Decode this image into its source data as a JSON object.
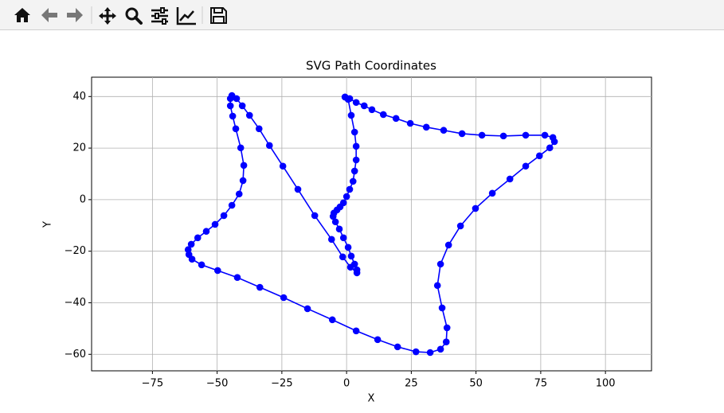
{
  "chart_data": {
    "type": "line",
    "title": "SVG Path Coordinates",
    "x_label": "X",
    "y_label": "Y",
    "x": [
      -0.6,
      1.2,
      3.7,
      6.8,
      9.8,
      14.2,
      19.1,
      24.6,
      30.8,
      37.5,
      44.6,
      52.3,
      60.6,
      69.2,
      76.6,
      79.7,
      80.3,
      78.5,
      74.5,
      69.2,
      63.1,
      56.3,
      49.8,
      44.0,
      39.4,
      36.3,
      35.1,
      36.9,
      38.8,
      38.5,
      36.3,
      32.3,
      26.8,
      19.7,
      12.0,
      3.7,
      -5.5,
      -15.1,
      -24.3,
      -33.5,
      -42.2,
      -49.8,
      -56.0,
      -59.7,
      -60.9,
      -61.2,
      -60.0,
      -57.5,
      -54.2,
      -50.8,
      -47.4,
      -44.3,
      -41.5,
      -40.0,
      -39.7,
      -40.9,
      -42.8,
      -44.0,
      -44.9,
      -44.9,
      -44.3,
      -42.5,
      -40.3,
      -37.5,
      -33.8,
      -29.8,
      -24.6,
      -18.8,
      -12.3,
      -5.8,
      -1.5,
      1.5,
      4.0,
      4.0,
      3.1,
      1.8,
      0.6,
      -1.2,
      -2.8,
      -4.3,
      -5.2,
      -4.9,
      -3.7,
      -2.5,
      -1.2,
      0.0,
      1.2,
      2.5,
      3.1,
      3.7,
      3.7,
      3.1,
      1.8,
      0.6,
      -0.6
    ],
    "series": [
      {
        "color": "#0000ff",
        "values": [
          39.8,
          39.2,
          37.7,
          36.4,
          34.9,
          33.0,
          31.5,
          29.6,
          28.1,
          26.9,
          25.6,
          25.0,
          24.7,
          25.0,
          25.0,
          24.1,
          22.5,
          20.1,
          17.0,
          13.0,
          8.0,
          2.5,
          -3.4,
          -10.2,
          -17.6,
          -25.0,
          -33.3,
          -42.0,
          -49.7,
          -55.2,
          -58.0,
          -59.3,
          -59.0,
          -57.1,
          -54.3,
          -50.9,
          -46.6,
          -42.3,
          -38.0,
          -34.0,
          -30.2,
          -27.5,
          -25.3,
          -23.1,
          -21.3,
          -19.4,
          -17.3,
          -14.8,
          -12.3,
          -9.6,
          -6.2,
          -2.2,
          2.2,
          7.4,
          13.3,
          20.1,
          27.5,
          32.4,
          36.4,
          39.2,
          40.4,
          39.2,
          36.4,
          32.7,
          27.5,
          21.0,
          13.0,
          4.0,
          -6.2,
          -15.4,
          -22.2,
          -26.2,
          -28.4,
          -27.2,
          -25.0,
          -21.9,
          -18.5,
          -14.8,
          -11.4,
          -8.6,
          -6.5,
          -5.2,
          -4.0,
          -2.8,
          -1.2,
          1.2,
          4.0,
          7.1,
          11.1,
          15.4,
          20.7,
          26.2,
          32.7,
          38.9,
          39.8
        ]
      }
    ],
    "xlim": [
      -98.5,
      117.8
    ],
    "ylim": [
      -66.4,
      47.5
    ],
    "xticks": [
      {
        "value": -75,
        "label": "−75"
      },
      {
        "value": -50,
        "label": "−50"
      },
      {
        "value": -25,
        "label": "−25"
      },
      0,
      25,
      50,
      75,
      100
    ],
    "yticks": [
      {
        "value": -60,
        "label": "−60"
      },
      {
        "value": -40,
        "label": "−40"
      },
      {
        "value": -20,
        "label": "−20"
      },
      0,
      20,
      40
    ],
    "grid": true,
    "markers": true
  }
}
